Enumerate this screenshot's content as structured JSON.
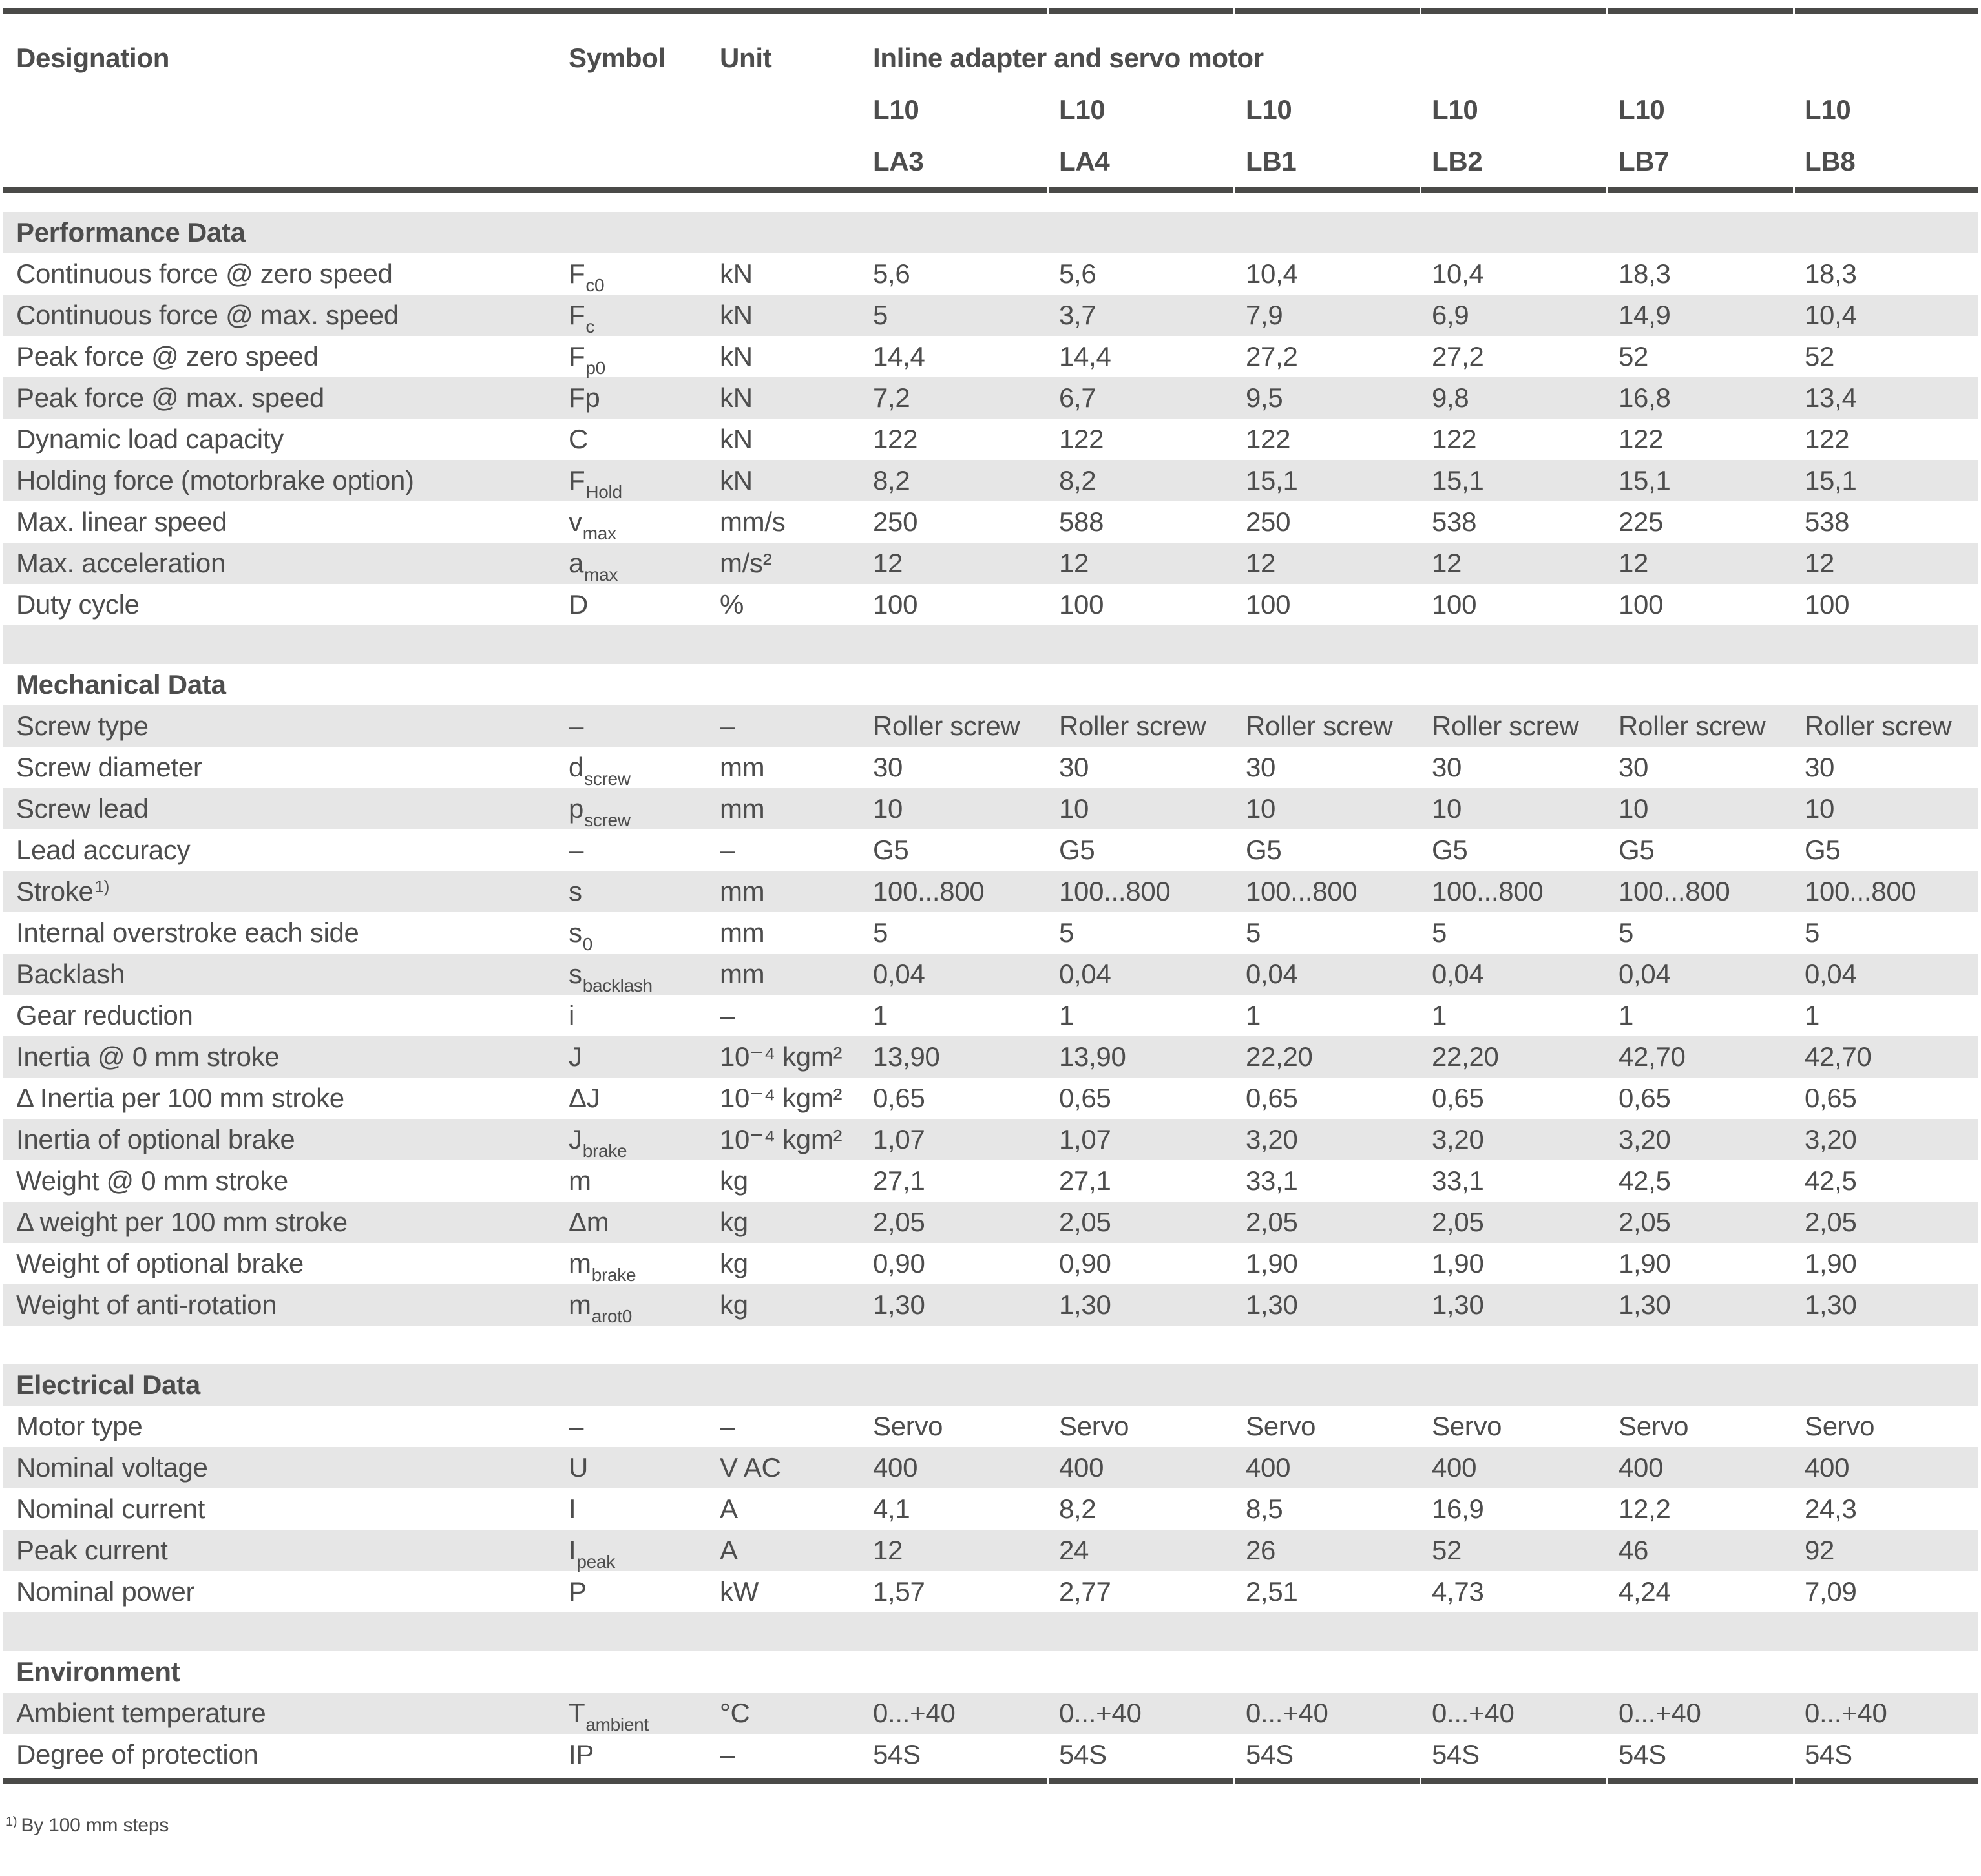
{
  "colors": {
    "bar": "#4a4a48",
    "row_shaded": "#e6e6e6",
    "text": "#4d4d4d",
    "background": "#ffffff"
  },
  "header": {
    "designation": "Designation",
    "symbol": "Symbol",
    "unit": "Unit",
    "group": "Inline adapter and servo motor",
    "columns": [
      {
        "top": "L10",
        "bottom": "LA3"
      },
      {
        "top": "L10",
        "bottom": "LA4"
      },
      {
        "top": "L10",
        "bottom": "LB1"
      },
      {
        "top": "L10",
        "bottom": "LB2"
      },
      {
        "top": "L10",
        "bottom": "LB7"
      },
      {
        "top": "L10",
        "bottom": "LB8"
      }
    ]
  },
  "sections": [
    {
      "title": "Performance Data",
      "rows": [
        {
          "label": "Continuous force @ zero speed",
          "sym": "F",
          "sub": "c0",
          "unit": "kN",
          "values": [
            "5,6",
            "5,6",
            "10,4",
            "10,4",
            "18,3",
            "18,3"
          ]
        },
        {
          "label": "Continuous force @ max. speed",
          "sym": "F",
          "sub": "c",
          "unit": "kN",
          "values": [
            "5",
            "3,7",
            "7,9",
            "6,9",
            "14,9",
            "10,4"
          ]
        },
        {
          "label": "Peak force @ zero speed",
          "sym": "F",
          "sub": "p0",
          "unit": "kN",
          "values": [
            "14,4",
            "14,4",
            "27,2",
            "27,2",
            "52",
            "52"
          ]
        },
        {
          "label": "Peak force @ max. speed",
          "sym": "Fp",
          "sub": "",
          "unit": "kN",
          "values": [
            "7,2",
            "6,7",
            "9,5",
            "9,8",
            "16,8",
            "13,4"
          ]
        },
        {
          "label": "Dynamic load capacity",
          "sym": "C",
          "sub": "",
          "unit": "kN",
          "values": [
            "122",
            "122",
            "122",
            "122",
            "122",
            "122"
          ]
        },
        {
          "label": "Holding force (motorbrake option)",
          "sym": "F",
          "sub": "Hold",
          "unit": "kN",
          "values": [
            "8,2",
            "8,2",
            "15,1",
            "15,1",
            "15,1",
            "15,1"
          ]
        },
        {
          "label": "Max. linear speed",
          "sym": "v",
          "sub": "max",
          "unit": "mm/s",
          "values": [
            "250",
            "588",
            "250",
            "538",
            "225",
            "538"
          ]
        },
        {
          "label": "Max. acceleration",
          "sym": "a",
          "sub": "max",
          "unit": "m/s²",
          "values": [
            "12",
            "12",
            "12",
            "12",
            "12",
            "12"
          ]
        },
        {
          "label": "Duty cycle",
          "sym": "D",
          "sub": "",
          "unit": "%",
          "values": [
            "100",
            "100",
            "100",
            "100",
            "100",
            "100"
          ]
        }
      ]
    },
    {
      "title": "Mechanical Data",
      "rows": [
        {
          "label": "Screw type",
          "sym": "–",
          "sub": "",
          "unit": "–",
          "values": [
            "Roller screw",
            "Roller screw",
            "Roller screw",
            "Roller screw",
            "Roller screw",
            "Roller screw"
          ]
        },
        {
          "label": "Screw diameter",
          "sym": "d",
          "sub": "screw",
          "unit": "mm",
          "values": [
            "30",
            "30",
            "30",
            "30",
            "30",
            "30"
          ]
        },
        {
          "label": "Screw lead",
          "sym": "p",
          "sub": "screw",
          "unit": "mm",
          "values": [
            "10",
            "10",
            "10",
            "10",
            "10",
            "10"
          ]
        },
        {
          "label": "Lead accuracy",
          "sym": "–",
          "sub": "",
          "unit": "–",
          "values": [
            "G5",
            "G5",
            "G5",
            "G5",
            "G5",
            "G5"
          ]
        },
        {
          "label": "Stroke",
          "sup": "1)",
          "sym": "s",
          "sub": "",
          "unit": "mm",
          "values": [
            "100...800",
            "100...800",
            "100...800",
            "100...800",
            "100...800",
            "100...800"
          ]
        },
        {
          "label": "Internal overstroke each side",
          "sym": "s",
          "sub": "0",
          "unit": "mm",
          "values": [
            "5",
            "5",
            "5",
            "5",
            "5",
            "5"
          ]
        },
        {
          "label": "Backlash",
          "sym": "s",
          "sub": "backlash",
          "unit": "mm",
          "values": [
            "0,04",
            "0,04",
            "0,04",
            "0,04",
            "0,04",
            "0,04"
          ]
        },
        {
          "label": "Gear reduction",
          "sym": "i",
          "sub": "",
          "unit": "–",
          "values": [
            "1",
            "1",
            "1",
            "1",
            "1",
            "1"
          ]
        },
        {
          "label": "Inertia @ 0 mm stroke",
          "sym": "J",
          "sub": "",
          "unit": "10⁻⁴ kgm²",
          "values": [
            "13,90",
            "13,90",
            "22,20",
            "22,20",
            "42,70",
            "42,70"
          ]
        },
        {
          "label": "Δ Inertia per 100 mm stroke",
          "sym": "ΔJ",
          "sub": "",
          "unit": "10⁻⁴ kgm²",
          "values": [
            "0,65",
            "0,65",
            "0,65",
            "0,65",
            "0,65",
            "0,65"
          ]
        },
        {
          "label": "Inertia of optional brake",
          "sym": "J",
          "sub": "brake",
          "unit": "10⁻⁴ kgm²",
          "values": [
            "1,07",
            "1,07",
            "3,20",
            "3,20",
            "3,20",
            "3,20"
          ]
        },
        {
          "label": "Weight @ 0 mm stroke",
          "sym": "m",
          "sub": "",
          "unit": "kg",
          "values": [
            "27,1",
            "27,1",
            "33,1",
            "33,1",
            "42,5",
            "42,5"
          ]
        },
        {
          "label": "Δ weight per 100 mm stroke",
          "sym": "Δm",
          "sub": "",
          "unit": "kg",
          "values": [
            "2,05",
            "2,05",
            "2,05",
            "2,05",
            "2,05",
            "2,05"
          ]
        },
        {
          "label": "Weight of optional brake",
          "sym": "m",
          "sub": "brake",
          "unit": "kg",
          "values": [
            "0,90",
            "0,90",
            "1,90",
            "1,90",
            "1,90",
            "1,90"
          ]
        },
        {
          "label": "Weight of anti-rotation",
          "sym": "m",
          "sub": "arot0",
          "unit": "kg",
          "values": [
            "1,30",
            "1,30",
            "1,30",
            "1,30",
            "1,30",
            "1,30"
          ]
        }
      ]
    },
    {
      "title": "Electrical Data",
      "rows": [
        {
          "label": "Motor type",
          "sym": "–",
          "sub": "",
          "unit": "–",
          "values": [
            "Servo",
            "Servo",
            "Servo",
            "Servo",
            "Servo",
            "Servo"
          ]
        },
        {
          "label": "Nominal voltage",
          "sym": "U",
          "sub": "",
          "unit": "V AC",
          "values": [
            "400",
            "400",
            "400",
            "400",
            "400",
            "400"
          ]
        },
        {
          "label": "Nominal current",
          "sym": "I",
          "sub": "",
          "unit": "A",
          "values": [
            "4,1",
            "8,2",
            "8,5",
            "16,9",
            "12,2",
            "24,3"
          ]
        },
        {
          "label": "Peak current",
          "sym": "I",
          "sub": "peak",
          "unit": "A",
          "values": [
            "12",
            "24",
            "26",
            "52",
            "46",
            "92"
          ]
        },
        {
          "label": "Nominal power",
          "sym": "P",
          "sub": "",
          "unit": "kW",
          "values": [
            "1,57",
            "2,77",
            "2,51",
            "4,73",
            "4,24",
            "7,09"
          ]
        }
      ]
    },
    {
      "title": "Environment",
      "rows": [
        {
          "label": "Ambient temperature",
          "sym": "T",
          "sub": "ambient",
          "unit": "°C",
          "values": [
            "0...+40",
            "0...+40",
            "0...+40",
            "0...+40",
            "0...+40",
            "0...+40"
          ]
        },
        {
          "label": "Degree of protection",
          "sym": "IP",
          "sub": "",
          "unit": "–",
          "values": [
            "54S",
            "54S",
            "54S",
            "54S",
            "54S",
            "54S"
          ]
        }
      ]
    }
  ],
  "footnote": {
    "sup": "1)",
    "text": "By 100 mm steps"
  }
}
